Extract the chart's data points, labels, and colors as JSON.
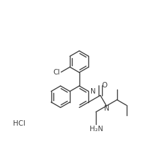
{
  "bg_color": "#ffffff",
  "line_color": "#404040",
  "text_color": "#404040",
  "figsize": [
    2.38,
    2.27
  ],
  "dpi": 100,
  "hcl_text": "HCl",
  "n_text": "N",
  "o_text": "O",
  "cl_text": "Cl",
  "h2n_text": "H₂N"
}
